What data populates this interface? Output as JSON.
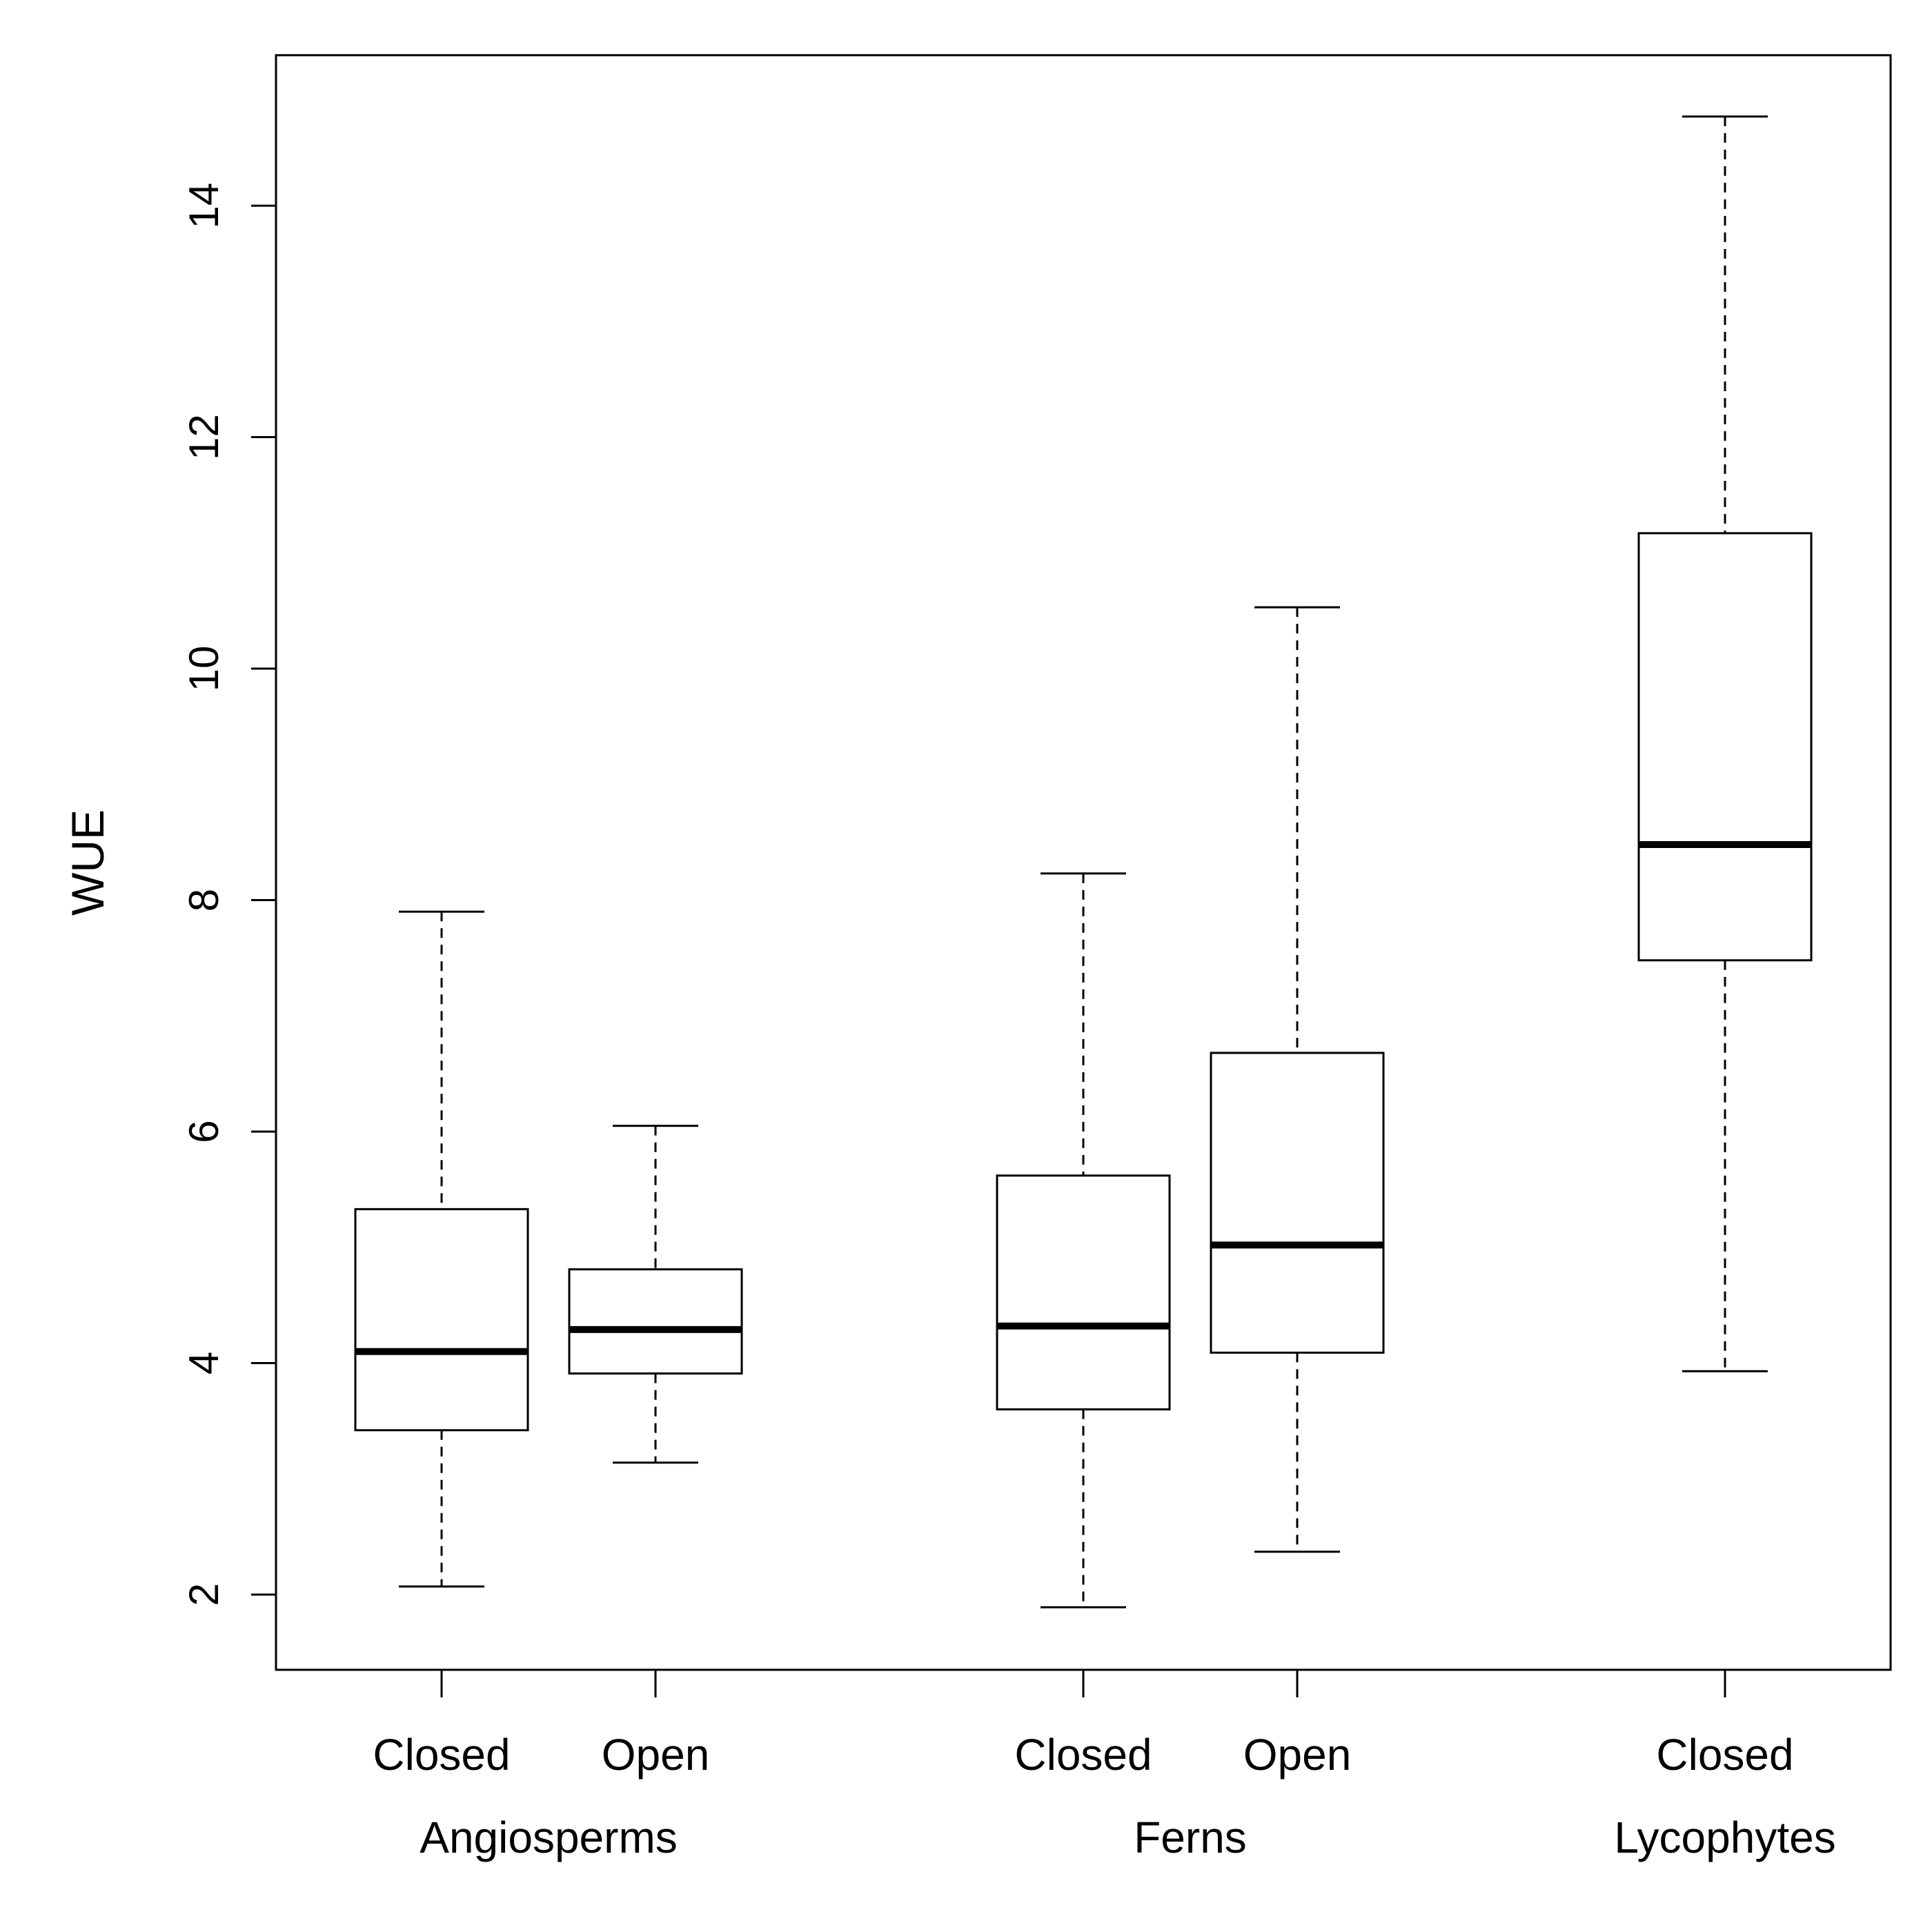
{
  "chart_data": {
    "type": "boxplot",
    "title": "",
    "xlabel": "",
    "ylabel": "WUE",
    "ylim": [
      1.35,
      15.3
    ],
    "yticks": [
      2,
      4,
      6,
      8,
      10,
      12,
      14
    ],
    "grid": false,
    "legend": "none",
    "groups": [
      {
        "name": "Angiosperms",
        "boxes": [
          {
            "label": "Closed",
            "min": 2.07,
            "q1": 3.42,
            "median": 4.1,
            "q3": 5.33,
            "max": 7.9
          },
          {
            "label": "Open",
            "min": 3.14,
            "q1": 3.91,
            "median": 4.29,
            "q3": 4.81,
            "max": 6.05
          }
        ]
      },
      {
        "name": "Ferns",
        "boxes": [
          {
            "label": "Closed",
            "min": 1.89,
            "q1": 3.6,
            "median": 4.32,
            "q3": 5.62,
            "max": 8.23
          },
          {
            "label": "Open",
            "min": 2.37,
            "q1": 4.09,
            "median": 5.02,
            "q3": 6.68,
            "max": 10.53
          }
        ]
      },
      {
        "name": "Lycophytes",
        "boxes": [
          {
            "label": "Closed",
            "min": 3.93,
            "q1": 7.48,
            "median": 8.48,
            "q3": 11.17,
            "max": 14.77
          }
        ]
      }
    ]
  }
}
